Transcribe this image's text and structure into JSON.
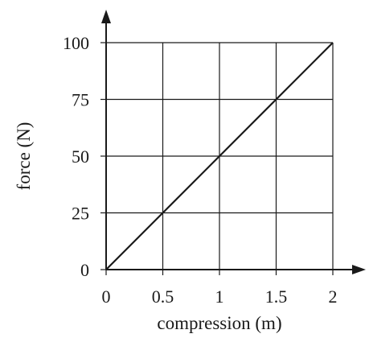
{
  "chart_data": {
    "type": "line",
    "title": "",
    "xlabel": "compression (m)",
    "ylabel": "force (N)",
    "xlim": [
      0,
      2
    ],
    "ylim": [
      0,
      100
    ],
    "x_ticks": [
      0,
      0.5,
      1,
      1.5,
      2
    ],
    "y_ticks": [
      0,
      25,
      50,
      75,
      100
    ],
    "x_tick_labels": [
      "0",
      "0.5",
      "1",
      "1.5",
      "2"
    ],
    "y_tick_labels": [
      "0",
      "25",
      "50",
      "75",
      "100"
    ],
    "grid": true,
    "series": [
      {
        "x": [
          0,
          0.5,
          1,
          1.5,
          2
        ],
        "y": [
          0,
          25,
          50,
          75,
          100
        ]
      }
    ],
    "colors": {
      "line": "#1a1a1a",
      "grid": "#1a1a1a",
      "axis": "#1a1a1a"
    }
  }
}
